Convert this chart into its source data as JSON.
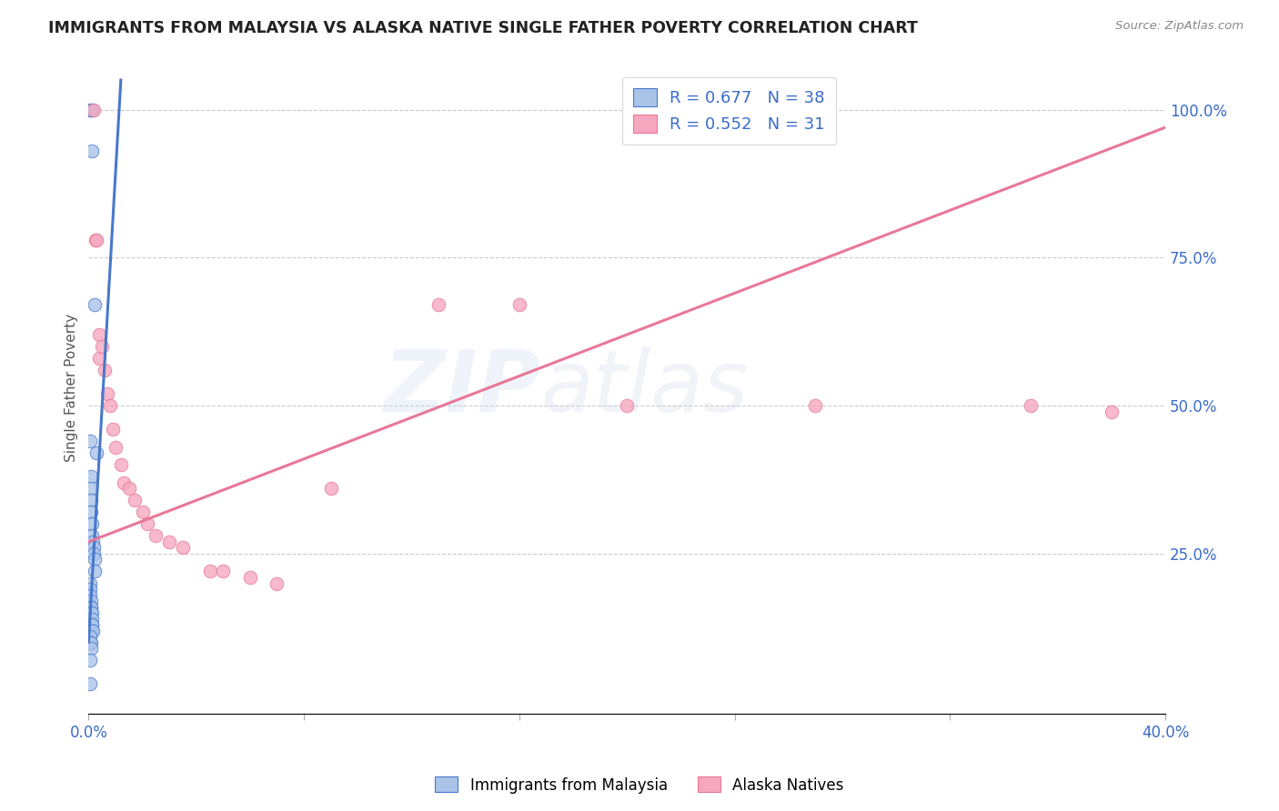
{
  "title": "IMMIGRANTS FROM MALAYSIA VS ALASKA NATIVE SINGLE FATHER POVERTY CORRELATION CHART",
  "source": "Source: ZipAtlas.com",
  "ylabel": "Single Father Poverty",
  "xlim": [
    0.0,
    0.4
  ],
  "ylim": [
    -0.02,
    1.08
  ],
  "x_ticks": [
    0.0,
    0.08,
    0.16,
    0.24,
    0.32,
    0.4
  ],
  "x_tick_labels": [
    "0.0%",
    "",
    "",
    "",
    "",
    "40.0%"
  ],
  "y_ticks_right": [
    0.25,
    0.5,
    0.75,
    1.0
  ],
  "y_tick_labels_right": [
    "25.0%",
    "50.0%",
    "75.0%",
    "100.0%"
  ],
  "legend_blue_r": "R = 0.677",
  "legend_blue_n": "38",
  "legend_pink_r": "R = 0.552",
  "legend_pink_n": "31",
  "blue_color": "#aac4e8",
  "pink_color": "#f5a8bf",
  "blue_line_color": "#4878cc",
  "pink_line_color": "#e87898",
  "watermark": "ZIPatlas",
  "blue_scatter_x": [
    0.0006,
    0.0014,
    0.0014,
    0.0022,
    0.003,
    0.0005,
    0.0008,
    0.001,
    0.001,
    0.001,
    0.0012,
    0.0014,
    0.0016,
    0.0018,
    0.002,
    0.0022,
    0.0024,
    0.0005,
    0.0006,
    0.0007,
    0.0008,
    0.0009,
    0.001,
    0.001,
    0.0011,
    0.0012,
    0.0012,
    0.0013,
    0.0014,
    0.0015,
    0.0005,
    0.0005,
    0.0006,
    0.0007,
    0.0008,
    0.0009,
    0.0006,
    0.0007
  ],
  "blue_scatter_y": [
    1.0,
    1.0,
    0.93,
    0.67,
    0.42,
    0.44,
    0.38,
    0.36,
    0.34,
    0.32,
    0.3,
    0.28,
    0.27,
    0.26,
    0.25,
    0.24,
    0.22,
    0.2,
    0.19,
    0.18,
    0.17,
    0.16,
    0.16,
    0.15,
    0.15,
    0.14,
    0.13,
    0.13,
    0.12,
    0.12,
    0.11,
    0.1,
    0.1,
    0.1,
    0.1,
    0.09,
    0.07,
    0.03
  ],
  "pink_scatter_x": [
    0.002,
    0.0025,
    0.003,
    0.004,
    0.004,
    0.005,
    0.006,
    0.007,
    0.008,
    0.009,
    0.01,
    0.012,
    0.013,
    0.015,
    0.017,
    0.02,
    0.022,
    0.025,
    0.03,
    0.035,
    0.045,
    0.05,
    0.06,
    0.07,
    0.16,
    0.2,
    0.27,
    0.35,
    0.38,
    0.13,
    0.09
  ],
  "pink_scatter_y": [
    1.0,
    0.78,
    0.78,
    0.62,
    0.58,
    0.6,
    0.56,
    0.52,
    0.5,
    0.46,
    0.43,
    0.4,
    0.37,
    0.36,
    0.34,
    0.32,
    0.3,
    0.28,
    0.27,
    0.26,
    0.22,
    0.22,
    0.21,
    0.2,
    0.67,
    0.5,
    0.5,
    0.5,
    0.49,
    0.67,
    0.36
  ],
  "blue_trend_x": [
    0.0,
    0.012
  ],
  "blue_trend_y": [
    0.1,
    1.05
  ],
  "pink_trend_x": [
    0.0,
    0.4
  ],
  "pink_trend_y": [
    0.27,
    0.97
  ]
}
